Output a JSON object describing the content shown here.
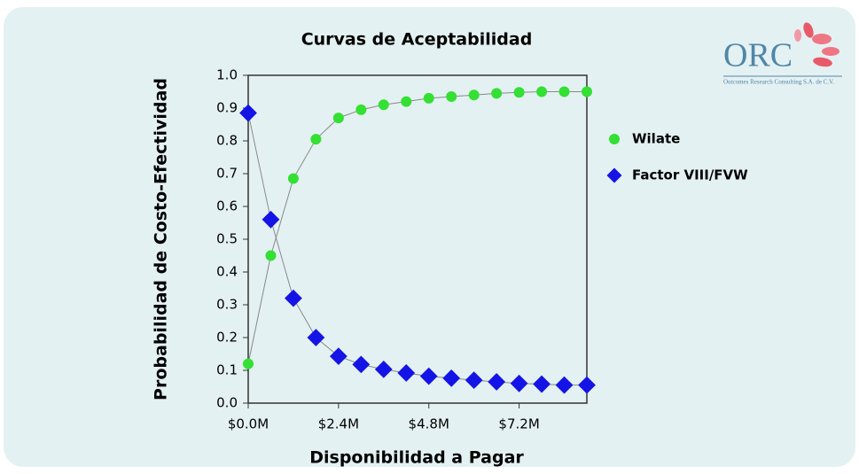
{
  "logo": {
    "text": "ORC",
    "subtitle": "Outcomes Research Consulting S.A. de C.V."
  },
  "chart_data": {
    "type": "line",
    "title": "Curvas de Aceptabilidad",
    "xlabel": "Disponibilidad a Pagar",
    "ylabel": "Probabilidad de Costo-Efectividad",
    "x": [
      0,
      600000,
      1200000,
      1800000,
      2400000,
      3000000,
      3600000,
      4200000,
      4800000,
      5400000,
      6000000,
      6600000,
      7200000,
      7800000,
      8400000,
      9000000
    ],
    "series": [
      {
        "name": "Wilate",
        "color": "#33e033",
        "marker": "circle",
        "values": [
          0.12,
          0.45,
          0.685,
          0.805,
          0.87,
          0.895,
          0.91,
          0.92,
          0.93,
          0.935,
          0.94,
          0.945,
          0.948,
          0.95,
          0.95,
          0.95
        ]
      },
      {
        "name": "Factor VIII/FVW",
        "color": "#1414e6",
        "marker": "diamond",
        "values": [
          0.885,
          0.56,
          0.32,
          0.2,
          0.143,
          0.118,
          0.103,
          0.092,
          0.082,
          0.076,
          0.07,
          0.065,
          0.06,
          0.058,
          0.055,
          0.055
        ]
      }
    ],
    "xlim": [
      0,
      9000000
    ],
    "xticks": [
      {
        "value": 0,
        "label": "$0.0M"
      },
      {
        "value": 2400000,
        "label": "$2.4M"
      },
      {
        "value": 4800000,
        "label": "$4.8M"
      },
      {
        "value": 7200000,
        "label": "$7.2M"
      }
    ],
    "ylim": [
      0,
      1
    ],
    "yticks": [
      {
        "value": 0,
        "label": "0.0"
      },
      0.1,
      0.2,
      0.3,
      0.4,
      0.5,
      0.6,
      0.7,
      0.8,
      0.9,
      {
        "value": 1,
        "label": "1.0"
      }
    ],
    "grid": false,
    "legend": "right"
  }
}
